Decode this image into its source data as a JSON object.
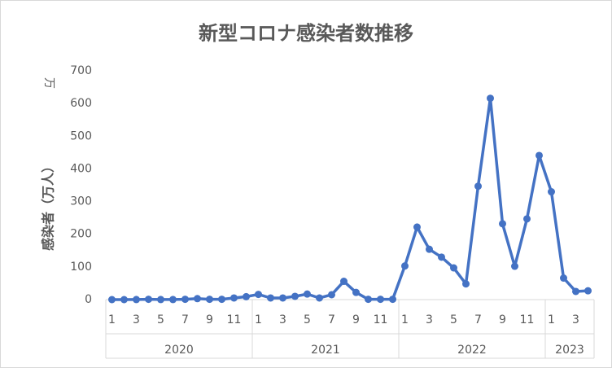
{
  "chart_data": {
    "type": "line",
    "title": "新型コロナ感染者数推移",
    "ylabel": "感染者（万人）",
    "display_unit": "万",
    "categories": [
      "1",
      null,
      "3",
      null,
      "5",
      null,
      "7",
      null,
      "9",
      null,
      "11",
      null,
      "1",
      null,
      "3",
      null,
      "5",
      null,
      "7",
      null,
      "9",
      null,
      "11",
      null,
      "1",
      null,
      "3",
      null,
      "5",
      null,
      "7",
      null,
      "9",
      null,
      "11",
      null,
      "1",
      null,
      "3",
      null
    ],
    "groups": [
      "2020",
      "2021",
      "2022",
      "2023"
    ],
    "series": [
      {
        "name": "感染者",
        "color": "#4472c4",
        "values": [
          0,
          0,
          0.2,
          1,
          0.2,
          0.2,
          1,
          3,
          1,
          1,
          5,
          9,
          16,
          5,
          5,
          10,
          17,
          5,
          15,
          56,
          22,
          1,
          1,
          1,
          103,
          222,
          154,
          130,
          97,
          48,
          347,
          616,
          232,
          102,
          247,
          441,
          330,
          66,
          25,
          27
        ]
      }
    ],
    "ylim": [
      0,
      700
    ],
    "yticks": [
      0,
      100,
      200,
      300,
      400,
      500,
      600,
      700
    ],
    "grid": false
  }
}
